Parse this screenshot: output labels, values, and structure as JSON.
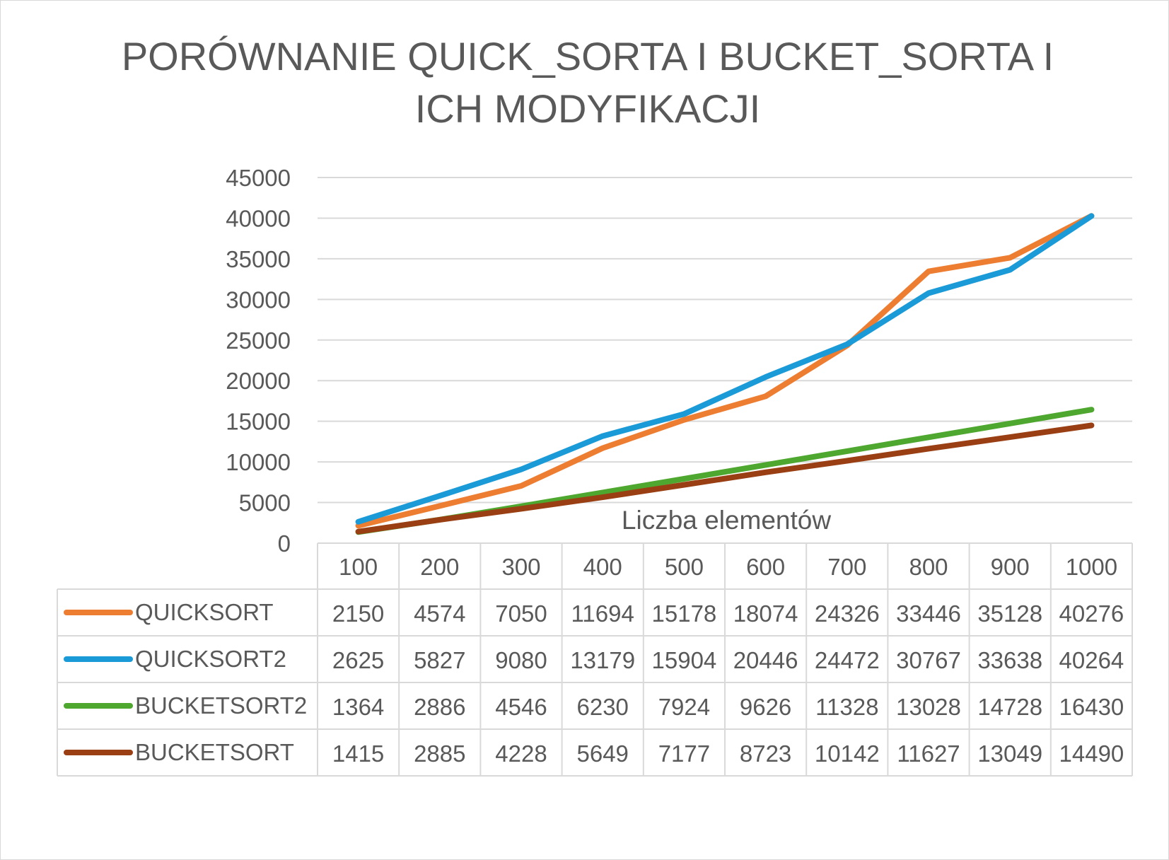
{
  "chart_data": {
    "type": "line",
    "title": "PORÓWNANIE QUICK_SORTA I BUCKET_SORTA I ICH MODYFIKACJI",
    "xlabel": "Liczba elementów",
    "ylabel": "",
    "categories": [
      "100",
      "200",
      "300",
      "400",
      "500",
      "600",
      "700",
      "800",
      "900",
      "1000"
    ],
    "ylim": [
      0,
      45000
    ],
    "yticks": [
      0,
      5000,
      10000,
      15000,
      20000,
      25000,
      30000,
      35000,
      40000,
      45000
    ],
    "grid": true,
    "data_table": true,
    "series": [
      {
        "name": "QUICKSORT",
        "color": "#ed7d31",
        "values": [
          2150,
          4574,
          7050,
          11694,
          15178,
          18074,
          24326,
          33446,
          35128,
          40276
        ]
      },
      {
        "name": "QUICKSORT2",
        "color": "#1a9ad6",
        "values": [
          2625,
          5827,
          9080,
          13179,
          15904,
          20446,
          24472,
          30767,
          33638,
          40264
        ]
      },
      {
        "name": "BUCKETSORT2",
        "color": "#4ea72e",
        "values": [
          1364,
          2886,
          4546,
          6230,
          7924,
          9626,
          11328,
          13028,
          14728,
          16430
        ]
      },
      {
        "name": "BUCKETSORT",
        "color": "#9a3f13",
        "values": [
          1415,
          2885,
          4228,
          5649,
          7177,
          8723,
          10142,
          11627,
          13049,
          14490
        ]
      }
    ]
  }
}
